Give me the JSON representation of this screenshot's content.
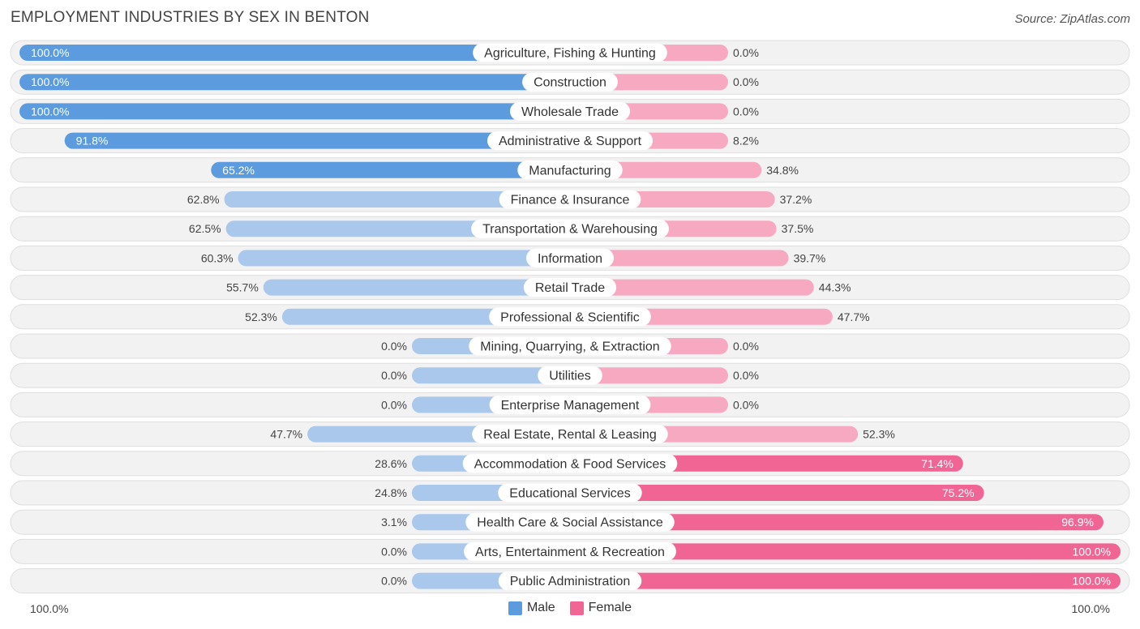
{
  "header": {
    "title": "EMPLOYMENT INDUSTRIES BY SEX IN BENTON",
    "source": "Source: ZipAtlas.com"
  },
  "legend": {
    "male_label": "Male",
    "female_label": "Female"
  },
  "axis": {
    "left_label": "100.0%",
    "right_label": "100.0%"
  },
  "colors": {
    "male_strong": "#5b9bde",
    "male_light": "#a9c8ec",
    "female_strong": "#f06593",
    "female_light": "#f7a9c2",
    "row_bg": "#f2f2f2",
    "row_border": "#dedede"
  },
  "chart_data": {
    "type": "bar",
    "orientation": "horizontal-diverging",
    "title": "EMPLOYMENT INDUSTRIES BY SEX IN BENTON",
    "xlim": [
      -100,
      100
    ],
    "legend_position": "bottom-center",
    "categories": [
      "Agriculture, Fishing & Hunting",
      "Construction",
      "Wholesale Trade",
      "Administrative & Support",
      "Manufacturing",
      "Finance & Insurance",
      "Transportation & Warehousing",
      "Information",
      "Retail Trade",
      "Professional & Scientific",
      "Mining, Quarrying, & Extraction",
      "Utilities",
      "Enterprise Management",
      "Real Estate, Rental & Leasing",
      "Accommodation & Food Services",
      "Educational Services",
      "Health Care & Social Assistance",
      "Arts, Entertainment & Recreation",
      "Public Administration"
    ],
    "series": [
      {
        "name": "Male",
        "values": [
          100.0,
          100.0,
          100.0,
          91.8,
          65.2,
          62.8,
          62.5,
          60.3,
          55.7,
          52.3,
          0.0,
          0.0,
          0.0,
          47.7,
          28.6,
          24.8,
          3.1,
          0.0,
          0.0
        ],
        "labels": [
          "100.0%",
          "100.0%",
          "100.0%",
          "91.8%",
          "65.2%",
          "62.8%",
          "62.5%",
          "60.3%",
          "55.7%",
          "52.3%",
          "0.0%",
          "0.0%",
          "0.0%",
          "47.7%",
          "28.6%",
          "24.8%",
          "3.1%",
          "0.0%",
          "0.0%"
        ]
      },
      {
        "name": "Female",
        "values": [
          0.0,
          0.0,
          0.0,
          8.2,
          34.8,
          37.2,
          37.5,
          39.7,
          44.3,
          47.7,
          0.0,
          0.0,
          0.0,
          52.3,
          71.4,
          75.2,
          96.9,
          100.0,
          100.0
        ],
        "labels": [
          "0.0%",
          "0.0%",
          "0.0%",
          "8.2%",
          "34.8%",
          "37.2%",
          "37.5%",
          "39.7%",
          "44.3%",
          "47.7%",
          "0.0%",
          "0.0%",
          "0.0%",
          "52.3%",
          "71.4%",
          "75.2%",
          "96.9%",
          "100.0%",
          "100.0%"
        ]
      }
    ]
  }
}
